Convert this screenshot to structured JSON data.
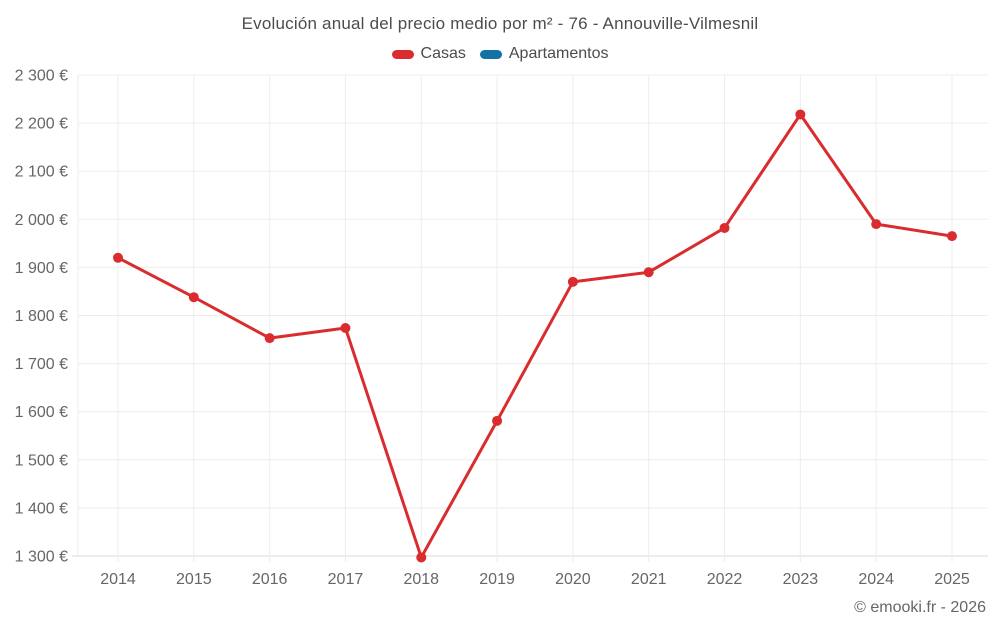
{
  "footer": {
    "copyright": "© emooki.fr - 2026"
  },
  "chart_data": {
    "type": "line",
    "title": "Evolución anual del precio medio por m² - 76 - Annouville-Vilmesnil",
    "categories": [
      "2014",
      "2015",
      "2016",
      "2017",
      "2018",
      "2019",
      "2020",
      "2021",
      "2022",
      "2023",
      "2024",
      "2025"
    ],
    "series": [
      {
        "name": "Casas",
        "color": "#da2c2e",
        "values": [
          1920,
          1838,
          1753,
          1774,
          1297,
          1581,
          1870,
          1890,
          1982,
          2218,
          1990,
          1965
        ]
      },
      {
        "name": "Apartamentos",
        "color": "#1272a4",
        "values": []
      }
    ],
    "xlabel": "",
    "ylabel": "",
    "ylim": [
      1300,
      2300
    ],
    "y_ticks": [
      {
        "value": 1300,
        "label": "1 300 €"
      },
      {
        "value": 1400,
        "label": "1 400 €"
      },
      {
        "value": 1500,
        "label": "1 500 €"
      },
      {
        "value": 1600,
        "label": "1 600 €"
      },
      {
        "value": 1700,
        "label": "1 700 €"
      },
      {
        "value": 1800,
        "label": "1 800 €"
      },
      {
        "value": 1900,
        "label": "1 900 €"
      },
      {
        "value": 2000,
        "label": "2 000 €"
      },
      {
        "value": 2100,
        "label": "2 100 €"
      },
      {
        "value": 2200,
        "label": "2 200 €"
      },
      {
        "value": 2300,
        "label": "2 300 €"
      }
    ],
    "grid": true,
    "legend_position": "top",
    "colors": {
      "gridline": "#ededed",
      "axis_line": "#d9d9d9",
      "axis_text": "#666666",
      "title_text": "#4c4c4c"
    }
  }
}
